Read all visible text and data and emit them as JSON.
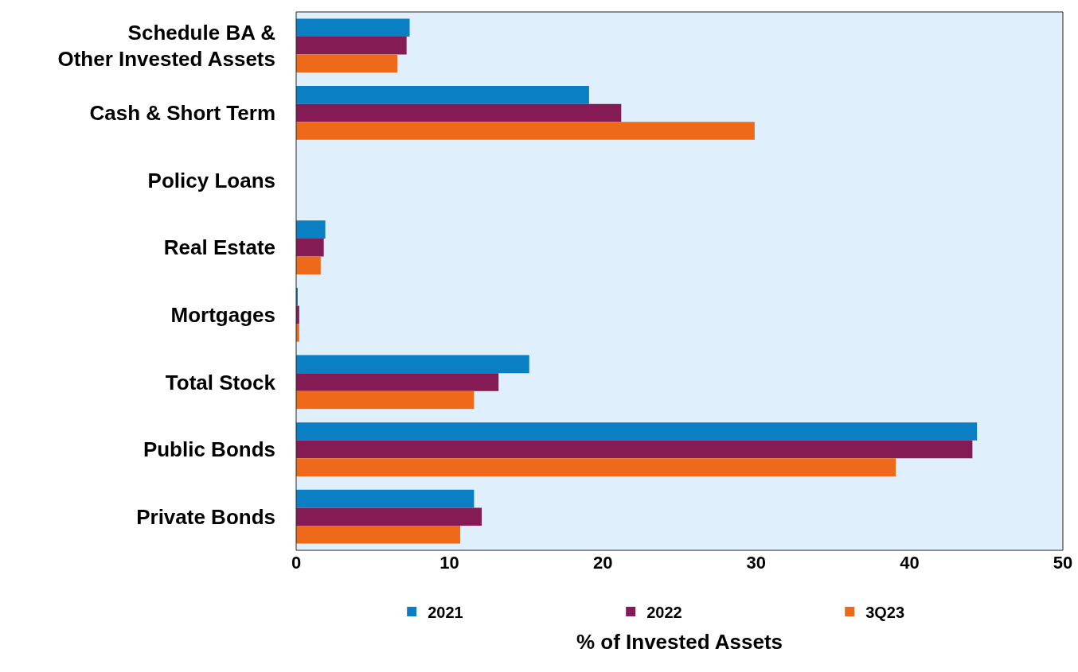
{
  "chart_data": {
    "type": "bar",
    "orientation": "horizontal",
    "xlabel": "% of Invested Assets",
    "categories": [
      "Schedule BA &\nOther Invested Assets",
      "Cash & Short Term",
      "Policy Loans",
      "Real Estate",
      "Mortgages",
      "Total Stock",
      "Public Bonds",
      "Private Bonds"
    ],
    "series": [
      {
        "name": "2021",
        "color": "#0a7fc4",
        "values": [
          7.4,
          19.1,
          0,
          1.9,
          0.1,
          15.2,
          44.4,
          11.6
        ]
      },
      {
        "name": "2022",
        "color": "#841b55",
        "values": [
          7.2,
          21.2,
          0,
          1.8,
          0.2,
          13.2,
          44.1,
          12.1
        ]
      },
      {
        "name": "3Q23",
        "color": "#ee6a1a",
        "values": [
          6.6,
          29.9,
          0,
          1.6,
          0.2,
          11.6,
          39.1,
          10.7
        ]
      }
    ],
    "xlim": [
      0,
      50
    ],
    "xticks": [
      0,
      10,
      20,
      30,
      40,
      50
    ],
    "grid": false,
    "legend": "bottom"
  }
}
